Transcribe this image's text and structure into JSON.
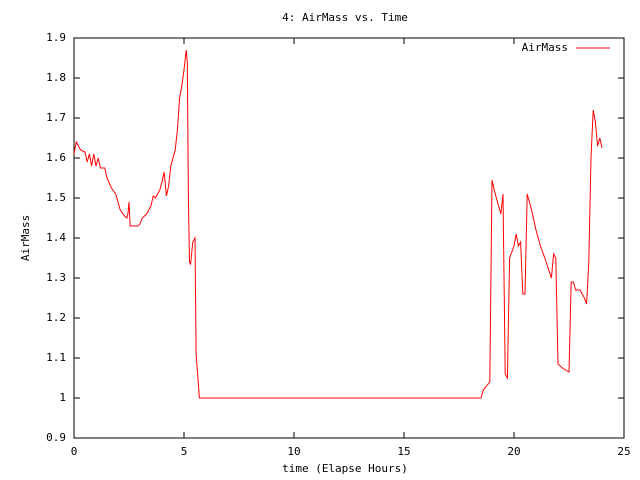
{
  "chart_data": {
    "type": "line",
    "title": "4: AirMass vs. Time",
    "xlabel": "time (Elapse Hours)",
    "ylabel": "AirMass",
    "xlim": [
      0,
      25
    ],
    "xticks": [
      0,
      5,
      10,
      15,
      20,
      25
    ],
    "ylim": [
      0.9,
      1.9
    ],
    "yticks": [
      0.9,
      1,
      1.1,
      1.2,
      1.3,
      1.4,
      1.5,
      1.6,
      1.7,
      1.8,
      1.9
    ],
    "legend": "top-right",
    "x": [
      0,
      0.1,
      0.3,
      0.5,
      0.6,
      0.7,
      0.8,
      0.9,
      1.0,
      1.1,
      1.2,
      1.4,
      1.5,
      1.7,
      1.9,
      2.0,
      2.1,
      2.3,
      2.4,
      2.45,
      2.5,
      2.55,
      2.7,
      2.9,
      3.0,
      3.1,
      3.3,
      3.5,
      3.6,
      3.7,
      3.9,
      4.0,
      4.1,
      4.2,
      4.3,
      4.4,
      4.6,
      4.7,
      4.8,
      4.9,
      5.0,
      5.1,
      5.15,
      5.2,
      5.25,
      5.3,
      5.4,
      5.5,
      5.55,
      5.7,
      18.5,
      18.6,
      18.9,
      19.0,
      19.1,
      19.2,
      19.4,
      19.5,
      19.6,
      19.7,
      19.8,
      20.0,
      20.1,
      20.2,
      20.3,
      20.4,
      20.5,
      20.6,
      20.8,
      21.0,
      21.2,
      21.4,
      21.7,
      21.8,
      21.9,
      22.0,
      22.2,
      22.5,
      22.6,
      22.7,
      22.8,
      23.0,
      23.2,
      23.3,
      23.4,
      23.5,
      23.6,
      23.7,
      23.8,
      23.9,
      24.0
    ],
    "series": [
      {
        "name": "AirMass",
        "color": "#ff0000",
        "values": [
          1.61,
          1.64,
          1.62,
          1.615,
          1.59,
          1.61,
          1.58,
          1.61,
          1.58,
          1.6,
          1.575,
          1.575,
          1.55,
          1.525,
          1.51,
          1.49,
          1.47,
          1.455,
          1.45,
          1.46,
          1.49,
          1.43,
          1.43,
          1.43,
          1.435,
          1.45,
          1.46,
          1.48,
          1.505,
          1.5,
          1.52,
          1.54,
          1.565,
          1.505,
          1.53,
          1.58,
          1.62,
          1.67,
          1.75,
          1.78,
          1.82,
          1.87,
          1.84,
          1.5,
          1.34,
          1.335,
          1.39,
          1.4,
          1.11,
          1.0,
          1.0,
          1.02,
          1.04,
          1.545,
          1.52,
          1.5,
          1.46,
          1.51,
          1.06,
          1.05,
          1.35,
          1.38,
          1.41,
          1.38,
          1.39,
          1.26,
          1.26,
          1.51,
          1.47,
          1.42,
          1.38,
          1.35,
          1.3,
          1.36,
          1.35,
          1.085,
          1.075,
          1.065,
          1.29,
          1.29,
          1.27,
          1.27,
          1.25,
          1.235,
          1.34,
          1.6,
          1.72,
          1.69,
          1.63,
          1.65,
          1.625
        ]
      }
    ]
  }
}
